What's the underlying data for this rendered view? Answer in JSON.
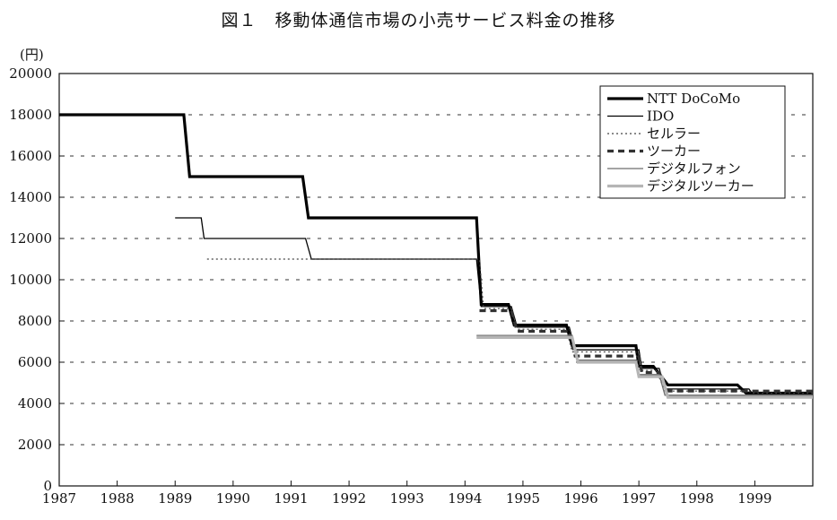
{
  "chart_data": {
    "type": "line",
    "title": "図１　移動体通信市場の小売サービス料金の推移",
    "ylabel": "(円)",
    "xlabel": "",
    "xlim": [
      1987,
      2000
    ],
    "ylim": [
      0,
      20000
    ],
    "x_ticks": [
      "1987",
      "1988",
      "1989",
      "1990",
      "1991",
      "1992",
      "1993",
      "1994",
      "1995",
      "1996",
      "1997",
      "1998",
      "1999"
    ],
    "y_ticks": [
      "0",
      "2000",
      "4000",
      "6000",
      "8000",
      "10000",
      "12000",
      "14000",
      "16000",
      "18000",
      "20000"
    ],
    "grid": "horizontal dotted",
    "legend_position": "top-right",
    "series": [
      {
        "name": "NTT DoCoMo",
        "style": "thick-solid",
        "color": "#000000",
        "points": [
          [
            1987.0,
            18000
          ],
          [
            1989.15,
            18000
          ],
          [
            1989.25,
            15000
          ],
          [
            1991.2,
            15000
          ],
          [
            1991.3,
            13000
          ],
          [
            1994.2,
            13000
          ],
          [
            1994.28,
            8800
          ],
          [
            1994.75,
            8800
          ],
          [
            1994.85,
            7800
          ],
          [
            1995.75,
            7800
          ],
          [
            1995.85,
            6800
          ],
          [
            1996.95,
            6800
          ],
          [
            1997.0,
            5800
          ],
          [
            1997.25,
            5800
          ],
          [
            1997.5,
            4900
          ],
          [
            1998.7,
            4900
          ],
          [
            1998.85,
            4500
          ],
          [
            2000.0,
            4500
          ]
        ]
      },
      {
        "name": "IDO",
        "style": "thin-solid",
        "color": "#000000",
        "points": [
          [
            1989.0,
            13000
          ],
          [
            1989.45,
            13000
          ],
          [
            1989.5,
            12000
          ],
          [
            1991.25,
            12000
          ],
          [
            1991.35,
            11000
          ],
          [
            1994.2,
            11000
          ],
          [
            1994.28,
            8700
          ],
          [
            1994.8,
            8700
          ],
          [
            1994.9,
            7700
          ],
          [
            1995.8,
            7700
          ],
          [
            1995.9,
            6600
          ],
          [
            1997.0,
            6600
          ],
          [
            1997.05,
            5700
          ],
          [
            1997.35,
            5700
          ],
          [
            1997.45,
            4700
          ],
          [
            1998.9,
            4700
          ],
          [
            1998.95,
            4500
          ],
          [
            2000.0,
            4500
          ]
        ]
      },
      {
        "name": "セルラー",
        "style": "dotted",
        "color": "#555555",
        "points": [
          [
            1989.55,
            11000
          ],
          [
            1994.25,
            11000
          ],
          [
            1994.32,
            8600
          ],
          [
            1994.8,
            8600
          ],
          [
            1994.9,
            7600
          ],
          [
            1995.75,
            7600
          ],
          [
            1995.85,
            6500
          ],
          [
            1996.95,
            6500
          ],
          [
            1997.0,
            5600
          ],
          [
            1997.3,
            5600
          ],
          [
            1997.45,
            4600
          ],
          [
            1998.9,
            4600
          ],
          [
            1998.95,
            4500
          ],
          [
            2000.0,
            4500
          ]
        ]
      },
      {
        "name": "ツーカー",
        "style": "dashed",
        "color": "#333333",
        "points": [
          [
            1994.25,
            8500
          ],
          [
            1994.8,
            8500
          ],
          [
            1994.9,
            7500
          ],
          [
            1995.8,
            7500
          ],
          [
            1995.9,
            6300
          ],
          [
            1997.0,
            6300
          ],
          [
            1997.05,
            5500
          ],
          [
            1997.35,
            5500
          ],
          [
            1997.5,
            4600
          ],
          [
            2000.0,
            4600
          ]
        ]
      },
      {
        "name": "デジタルフォン",
        "style": "thin-gray",
        "color": "#777777",
        "points": [
          [
            1994.2,
            7300
          ],
          [
            1995.85,
            7300
          ],
          [
            1995.95,
            6100
          ],
          [
            1996.95,
            6100
          ],
          [
            1997.0,
            5400
          ],
          [
            1997.35,
            5400
          ],
          [
            1997.45,
            4400
          ],
          [
            2000.0,
            4400
          ]
        ]
      },
      {
        "name": "デジタルツーカー",
        "style": "thick-gray",
        "color": "#bbbbbb",
        "points": [
          [
            1994.2,
            7200
          ],
          [
            1995.85,
            7200
          ],
          [
            1995.95,
            6000
          ],
          [
            1996.95,
            6000
          ],
          [
            1997.0,
            5300
          ],
          [
            1997.4,
            5300
          ],
          [
            1997.5,
            4300
          ],
          [
            2000.0,
            4300
          ]
        ]
      }
    ]
  }
}
